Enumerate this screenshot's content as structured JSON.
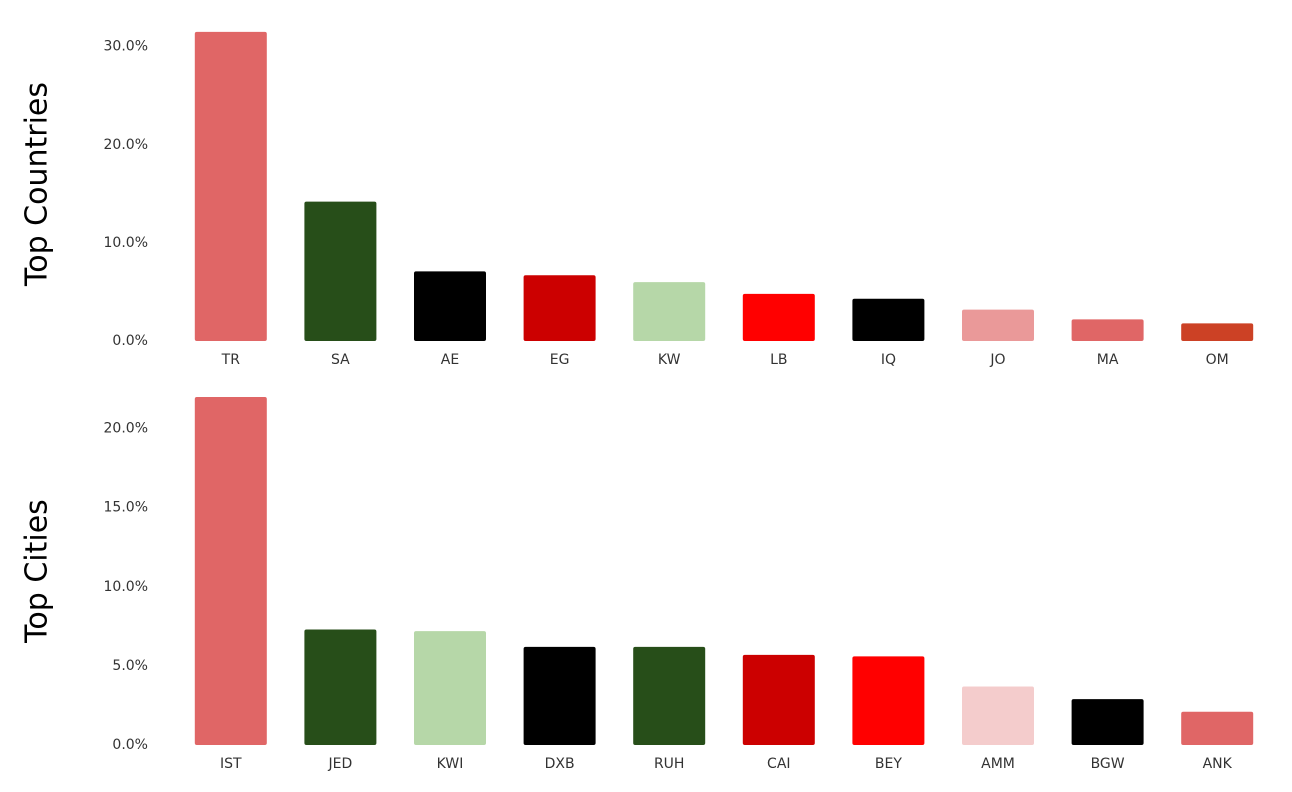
{
  "chart_data": [
    {
      "type": "bar",
      "y_title": "Top Countries",
      "categories": [
        "TR",
        "SA",
        "AE",
        "EG",
        "KW",
        "LB",
        "IQ",
        "JO",
        "MA",
        "OM"
      ],
      "values": [
        31.5,
        14.2,
        7.1,
        6.7,
        6.0,
        4.8,
        4.3,
        3.2,
        2.2,
        1.8
      ],
      "colors": [
        "#e06666",
        "#274e19",
        "#000000",
        "#cc0000",
        "#b6d7a8",
        "#ff0000",
        "#000000",
        "#ea9999",
        "#e06666",
        "#cc4125"
      ],
      "ylim": [
        0,
        32
      ],
      "yticks": [
        {
          "value": 0,
          "label": "0.0%"
        },
        {
          "value": 10,
          "label": "10.0%"
        },
        {
          "value": 20,
          "label": "20.0%"
        },
        {
          "value": 30,
          "label": "30.0%"
        }
      ]
    },
    {
      "type": "bar",
      "y_title": "Top Cities",
      "categories": [
        "IST",
        "JED",
        "KWI",
        "DXB",
        "RUH",
        "CAI",
        "BEY",
        "AMM",
        "BGW",
        "ANK"
      ],
      "values": [
        22.0,
        7.3,
        7.2,
        6.2,
        6.2,
        5.7,
        5.6,
        3.7,
        2.9,
        2.1
      ],
      "colors": [
        "#e06666",
        "#274e19",
        "#b6d7a8",
        "#000000",
        "#274e19",
        "#cc0000",
        "#ff0000",
        "#f4cccc",
        "#000000",
        "#e06666"
      ],
      "ylim": [
        0,
        22
      ],
      "yticks": [
        {
          "value": 0,
          "label": "0.0%"
        },
        {
          "value": 5,
          "label": "5.0%"
        },
        {
          "value": 10,
          "label": "10.0%"
        },
        {
          "value": 15,
          "label": "15.0%"
        },
        {
          "value": 20,
          "label": "20.0%"
        }
      ]
    }
  ]
}
